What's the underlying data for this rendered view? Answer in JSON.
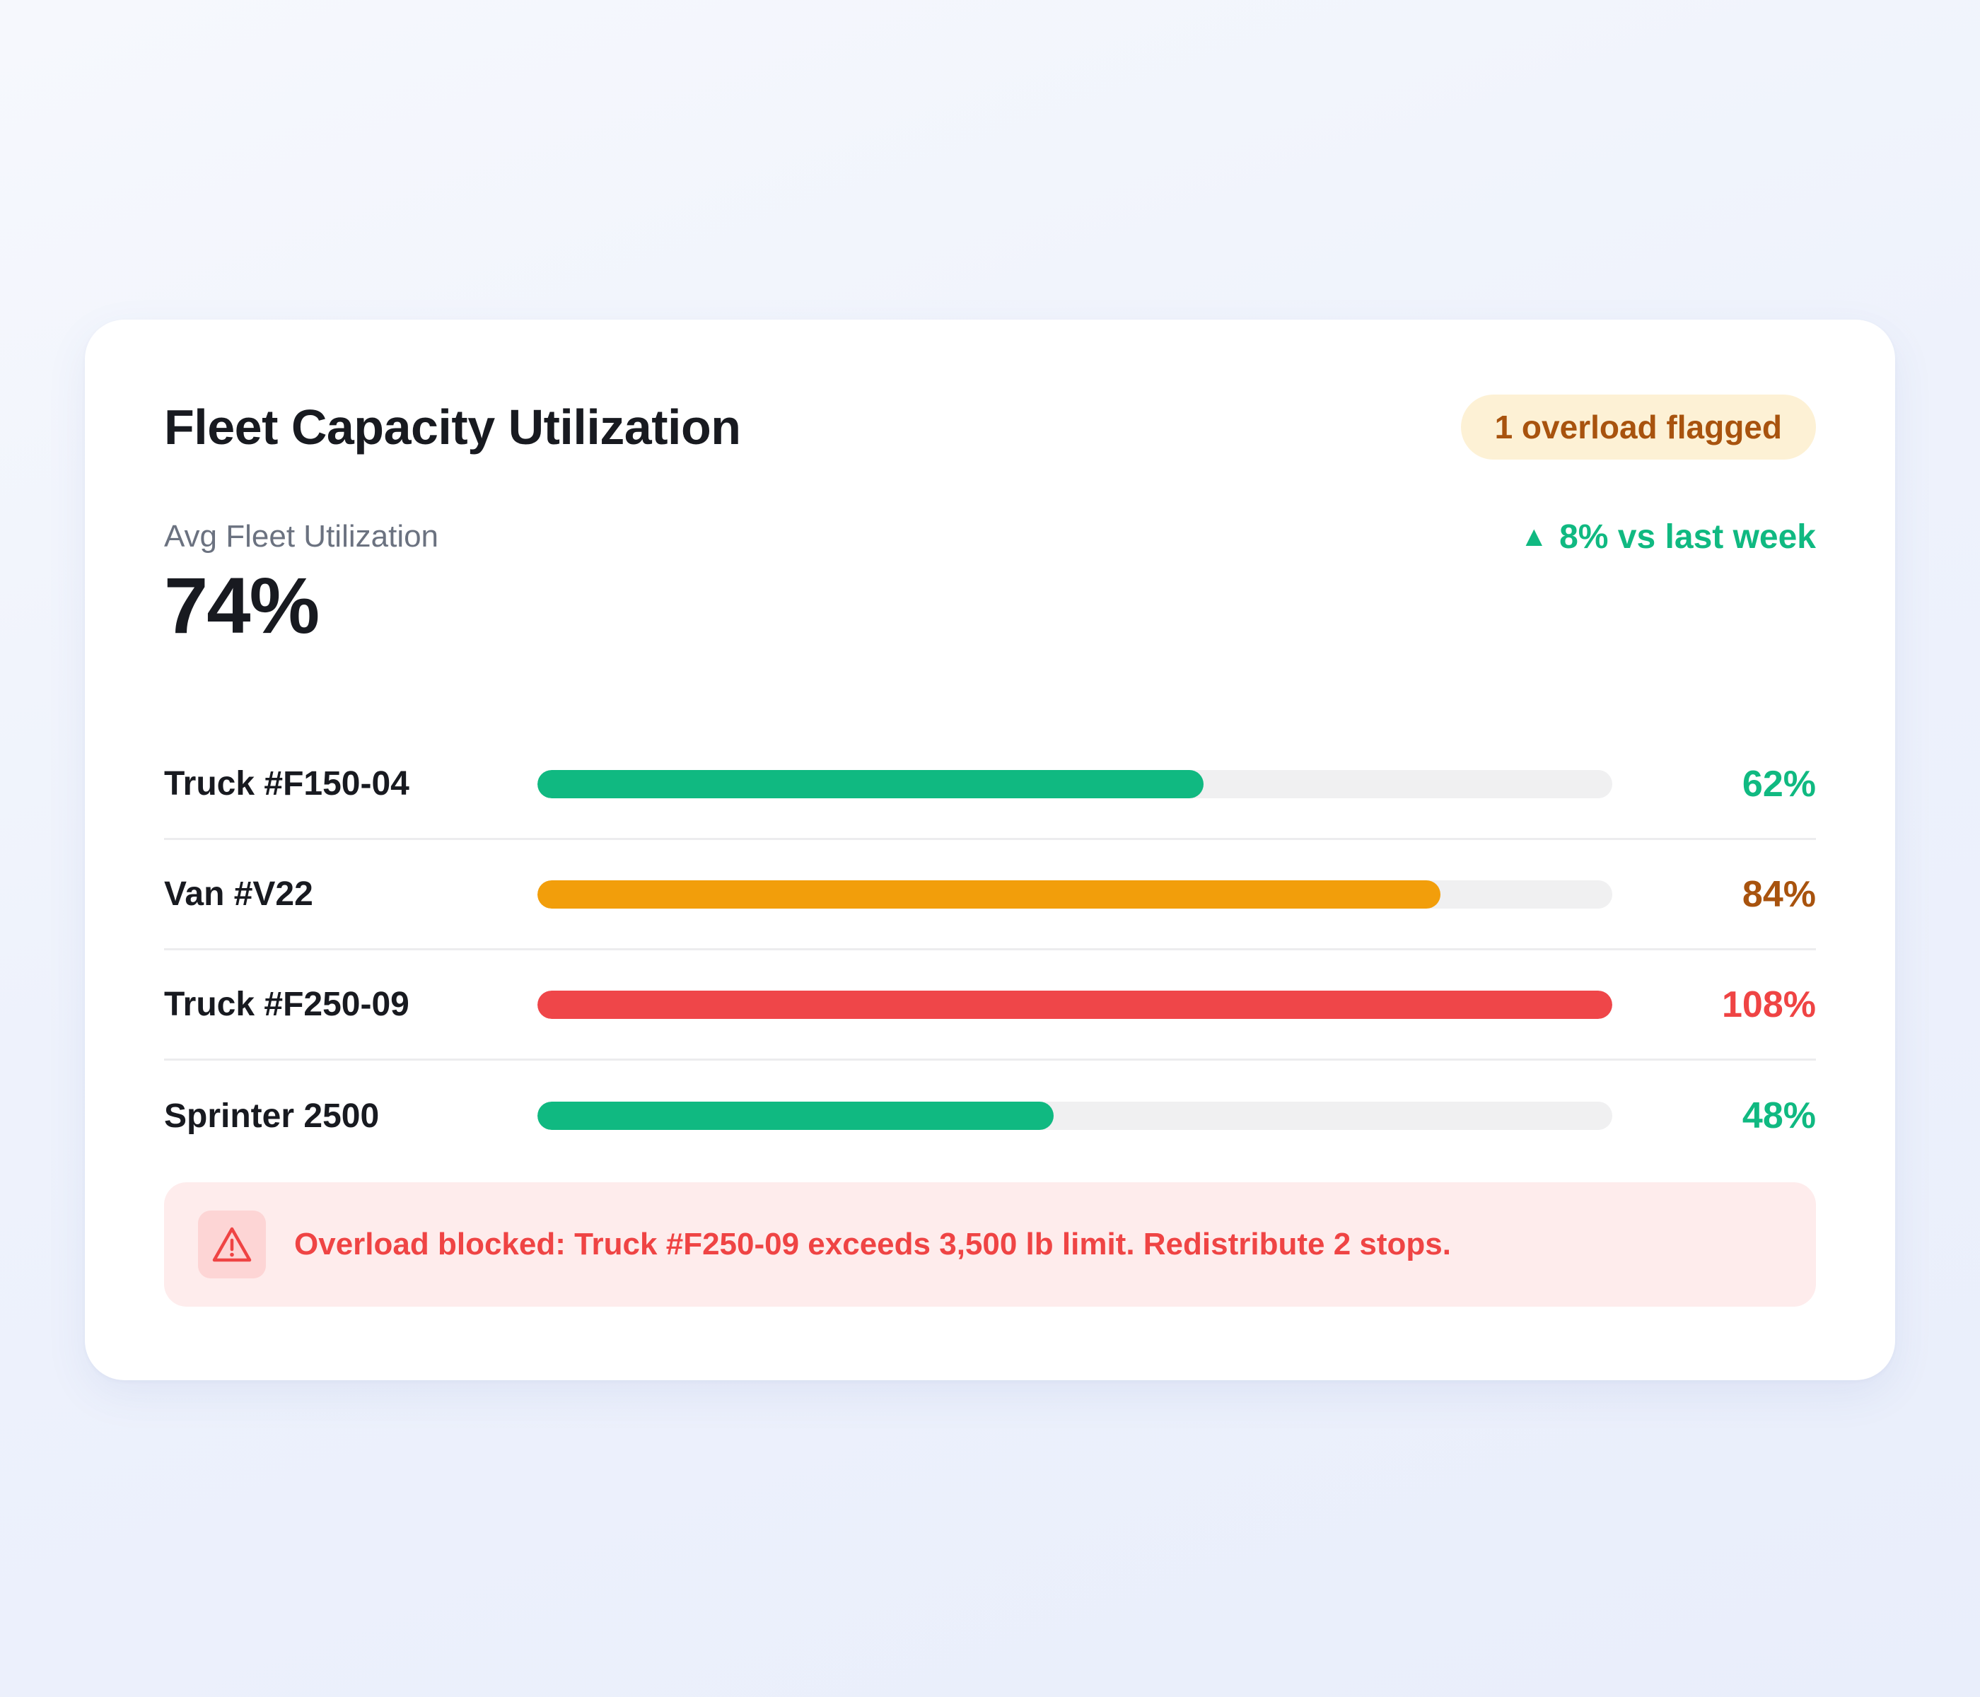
{
  "card": {
    "title": "Fleet Capacity Utilization",
    "badge": "1 overload flagged"
  },
  "summary": {
    "label": "Avg Fleet Utilization",
    "value": "74%",
    "trend_arrow": "▲",
    "trend_text": "8% vs last week"
  },
  "vehicles": [
    {
      "name": "Truck #F150-04",
      "utilization": 62,
      "pct_label": "62%",
      "bar_color": "#10b981",
      "text_color": "#10b981"
    },
    {
      "name": "Van #V22",
      "utilization": 84,
      "pct_label": "84%",
      "bar_color": "#f29e0b",
      "text_color": "#a8530e"
    },
    {
      "name": "Truck #F250-09",
      "utilization": 108,
      "pct_label": "108%",
      "bar_color": "#ef4649",
      "text_color": "#ef4444"
    },
    {
      "name": "Sprinter 2500",
      "utilization": 48,
      "pct_label": "48%",
      "bar_color": "#10b981",
      "text_color": "#10b981"
    }
  ],
  "alert": {
    "icon": "warning-triangle-icon",
    "message": "Overload blocked: Truck #F250-09 exceeds 3,500 lb limit. Redistribute 2 stops."
  },
  "colors": {
    "success": "#10b981",
    "warning": "#f29e0b",
    "danger": "#ef4444",
    "badge_bg": "#fdf1d5",
    "badge_text": "#a8530e"
  }
}
